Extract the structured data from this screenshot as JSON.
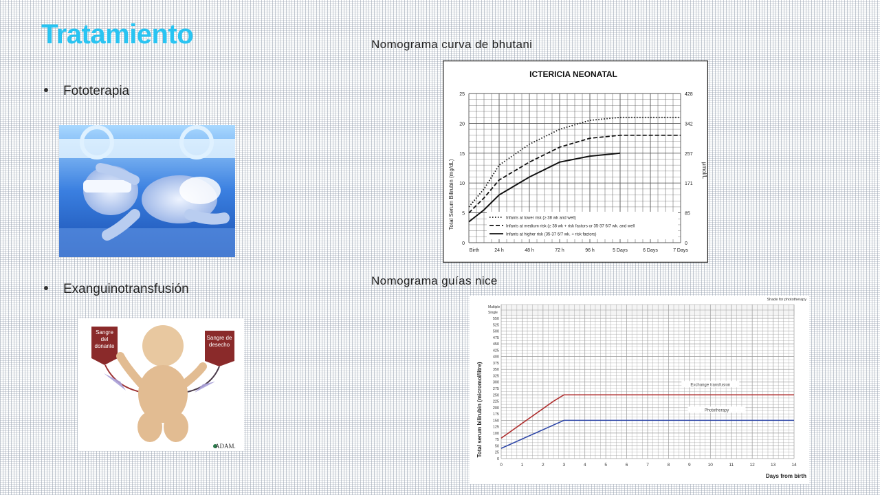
{
  "slide": {
    "title": "Tratamiento",
    "bullets": [
      "Fototerapia",
      "Exanguinotransfusión"
    ],
    "captions": {
      "bhutani": "Nomograma curva de bhutani",
      "nice": "Nomograma guías nice"
    }
  },
  "photo": {
    "icon": "newborn-phototherapy-photo"
  },
  "illustration": {
    "icon": "exchange-transfusion-illustration",
    "label_donor": "Sangre del donante",
    "label_waste": "Sangre de desecho",
    "brand": "ADAM."
  },
  "chart_data": [
    {
      "type": "line",
      "title": "ICTERICIA NEONATAL",
      "ylabel": "Total Serum Bilirubin (mg/dL)",
      "y2label": "µmol/L",
      "x_ticks": [
        "Birth",
        "24 h",
        "48 h",
        "72 h",
        "96 h",
        "5 Days",
        "6 Days",
        "7 Days"
      ],
      "y_ticks": [
        0,
        5,
        10,
        15,
        20,
        25
      ],
      "y2_ticks": [
        "0",
        "85",
        "171",
        "257",
        "342",
        "428"
      ],
      "ylim": [
        0,
        25
      ],
      "grid": true,
      "legend_position": "bottom-right",
      "series": [
        {
          "name": "Infants at lower risk (≥ 38 wk and well)",
          "style": "dotted",
          "x": [
            0,
            12,
            24,
            48,
            72,
            96,
            120,
            144,
            168
          ],
          "values": [
            6,
            9,
            13,
            16.5,
            19,
            20.5,
            21,
            21,
            21
          ]
        },
        {
          "name": "Infants at medium risk (≥ 38 wk + risk factors or 35-37 6/7 wk. and well",
          "style": "dashed",
          "x": [
            0,
            12,
            24,
            48,
            72,
            96,
            120,
            144,
            168
          ],
          "values": [
            5,
            7.5,
            10.5,
            13.5,
            16,
            17.5,
            18,
            18,
            18
          ]
        },
        {
          "name": "Infants at higher risk (35-37 6/7 wk. + risk factors)",
          "style": "solid",
          "x": [
            0,
            12,
            24,
            48,
            72,
            96,
            120
          ],
          "values": [
            3.5,
            5.5,
            8,
            11,
            13.5,
            14.5,
            15
          ]
        }
      ]
    },
    {
      "type": "line",
      "title": "",
      "shade_note": "Shade for phototherapy",
      "row_labels": [
        "Multiple",
        "Single"
      ],
      "xlabel": "Days from birth",
      "ylabel": "Total serum bilirubin (micromol/litre)",
      "x_ticks": [
        0,
        1,
        2,
        3,
        4,
        5,
        6,
        7,
        8,
        9,
        10,
        11,
        12,
        13,
        14
      ],
      "y_ticks": [
        0,
        25,
        50,
        75,
        100,
        125,
        150,
        175,
        200,
        225,
        250,
        275,
        300,
        325,
        350,
        375,
        400,
        425,
        450,
        475,
        500,
        525,
        550
      ],
      "xlim": [
        0,
        14
      ],
      "ylim": [
        0,
        550
      ],
      "grid": true,
      "series": [
        {
          "name": "Exchange transfusion",
          "color": "#b03030",
          "x": [
            0,
            2.5,
            3,
            14
          ],
          "values": [
            80,
            225,
            250,
            250
          ]
        },
        {
          "name": "Phototherapy",
          "color": "#3048a8",
          "x": [
            0,
            3,
            14
          ],
          "values": [
            40,
            150,
            150
          ]
        }
      ]
    }
  ]
}
